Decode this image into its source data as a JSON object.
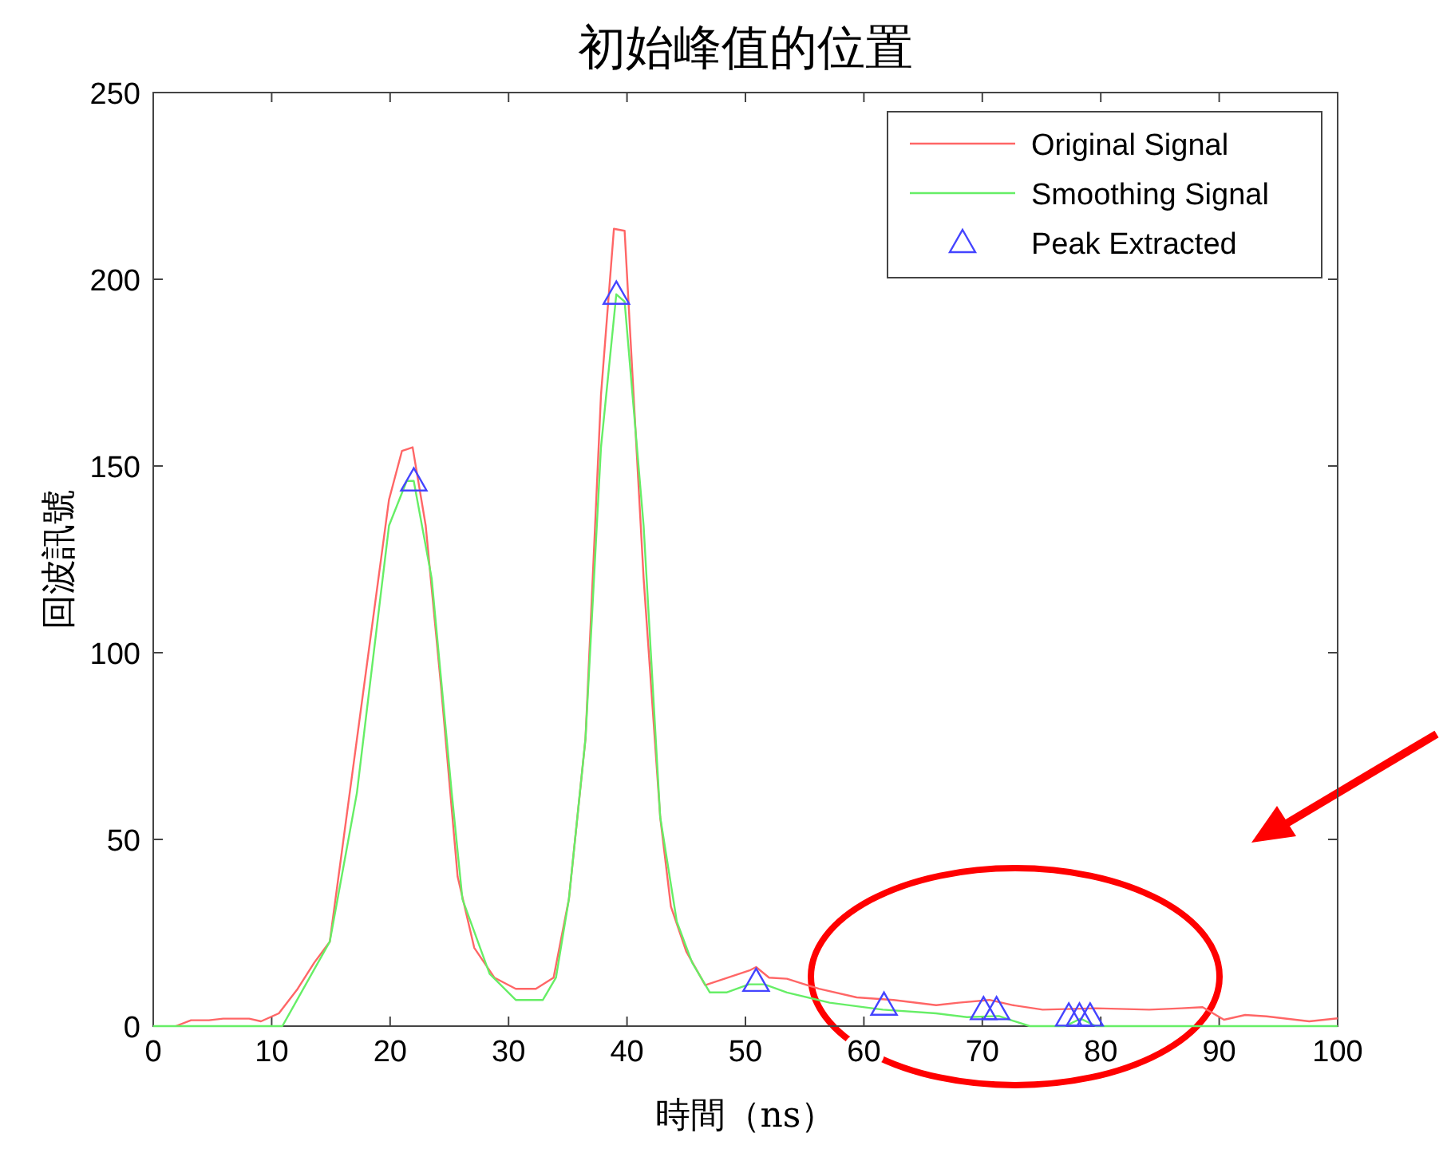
{
  "chart_data": {
    "type": "line",
    "title": "初始峰值的位置",
    "xlabel": "時間（ns）",
    "ylabel": "回波訊號",
    "xlim": [
      0,
      100
    ],
    "xticks": [
      0,
      10,
      20,
      30,
      40,
      50,
      60,
      70,
      80,
      90,
      100
    ],
    "ylim": [
      0,
      250
    ],
    "yticks": [
      0,
      50,
      100,
      150,
      200,
      250
    ],
    "legend": "top right",
    "grid": false,
    "series": [
      {
        "name": "Original Signal",
        "color": "#ff6666",
        "marker": "none",
        "x": [
          1.9,
          3.2,
          4.7,
          5.9,
          8.1,
          9.1,
          10.6,
          12.2,
          13.6,
          14.9,
          19.0,
          19.9,
          21.0,
          21.9,
          23.0,
          24.3,
          25.7,
          27.1,
          28.8,
          30.6,
          32.3,
          33.8,
          35.1,
          36.5,
          37.8,
          38.9,
          39.8,
          40.3,
          41.4,
          42.8,
          43.7,
          45.0,
          46.6,
          50.4,
          50.9,
          52.0,
          53.5,
          56.2,
          59.4,
          62.5,
          66.1,
          68.0,
          70.6,
          72.6,
          75.1,
          79.6,
          84.1,
          86.8,
          88.6,
          90.4,
          92.2,
          94.0,
          97.6,
          100
        ],
        "values": [
          0,
          1.6,
          1.6,
          2,
          2,
          1.3,
          3.4,
          10,
          17,
          22.6,
          119.6,
          141,
          154,
          155,
          134,
          91,
          40,
          21,
          13,
          10,
          10,
          13,
          34,
          77,
          169,
          213.5,
          213,
          184,
          120,
          56,
          32,
          20,
          11,
          15,
          15.8,
          13,
          12.7,
          10,
          7.7,
          7,
          5.6,
          6.3,
          7,
          5.6,
          4.4,
          4.8,
          4.4,
          4.8,
          5.1,
          1.7,
          3,
          2.6,
          1.3,
          2.1
        ]
      },
      {
        "name": "Smoothing Signal",
        "color": "#66ee66",
        "marker": "none",
        "x": [
          0,
          10.9,
          14.9,
          17.2,
          19.9,
          21.4,
          22.0,
          23.5,
          25.2,
          26.1,
          28.4,
          30.6,
          32.9,
          34.0,
          35.1,
          36.5,
          37.8,
          39.1,
          39.8,
          41.4,
          42.8,
          44.2,
          45.5,
          47.0,
          48.4,
          50.3,
          51.6,
          53.5,
          57.1,
          61.6,
          66.1,
          68.7,
          71.4,
          72.6,
          74.0,
          77.0,
          78.3,
          79.6,
          100
        ],
        "values": [
          0,
          0,
          22.6,
          62.5,
          134,
          146,
          146,
          120,
          62.5,
          34,
          14,
          7,
          7,
          13,
          34,
          77,
          155,
          196,
          194,
          134,
          56,
          28,
          17,
          9,
          9,
          11.2,
          11.2,
          9,
          6.3,
          4.4,
          3.4,
          2.4,
          2.7,
          1.4,
          0,
          0,
          2,
          0,
          0
        ]
      },
      {
        "name": "Peak Extracted",
        "type": "scatter",
        "color": "#4444ff",
        "marker": "triangle",
        "x": [
          22.0,
          39.1,
          50.9,
          61.7,
          70.1,
          71.2,
          77.3,
          78.2,
          79.1
        ],
        "values": [
          146,
          196,
          12,
          5.6,
          4.4,
          4.4,
          2.7,
          2.7,
          2.7
        ]
      }
    ]
  }
}
